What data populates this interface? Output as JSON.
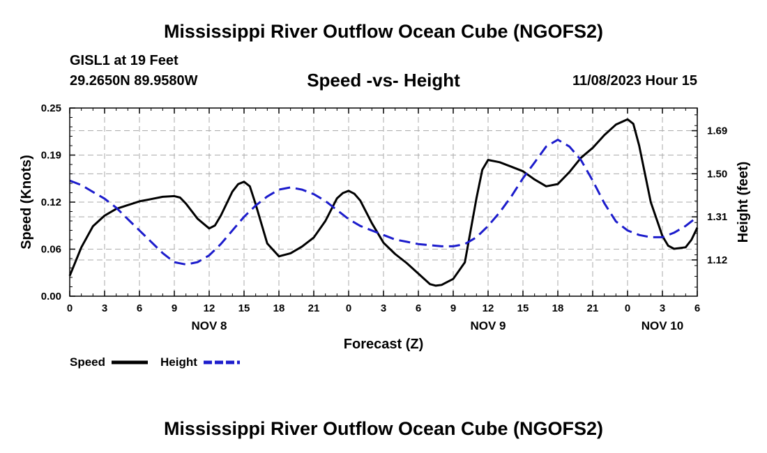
{
  "header": {
    "title": "Mississippi River Outflow Ocean Cube (NGOFS2)",
    "station": "GISL1 at 19 Feet",
    "coords": "29.2650N  89.9580W",
    "subtitle": "Speed -vs- Height",
    "datetime": "11/08/2023 Hour 15"
  },
  "footer": {
    "title": "Mississippi River Outflow Ocean Cube (NGOFS2)"
  },
  "chart_data": {
    "type": "line",
    "title": "Speed -vs- Height",
    "xlabel": "Forecast (Z)",
    "ylabel": "Speed (Knots)",
    "y2label": "Height (feet)",
    "xlim": [
      0,
      54
    ],
    "ylim": [
      0,
      0.25
    ],
    "y2lim": [
      0.96,
      1.79
    ],
    "x_ticks": [
      0,
      3,
      6,
      9,
      12,
      15,
      18,
      21,
      24,
      27,
      30,
      33,
      36,
      39,
      42,
      45,
      48,
      51,
      54
    ],
    "x_tick_labels": [
      "0",
      "3",
      "6",
      "9",
      "12",
      "15",
      "18",
      "21",
      "0",
      "3",
      "6",
      "9",
      "12",
      "15",
      "18",
      "21",
      "0",
      "3",
      "6"
    ],
    "y_ticks": [
      0,
      0.0625,
      0.125,
      0.1875,
      0.25
    ],
    "y_tick_labels": [
      "0.00",
      "0.06",
      "0.12",
      "0.19",
      "0.25"
    ],
    "y2_ticks": [
      1.12,
      1.31,
      1.5,
      1.69
    ],
    "y2_tick_labels": [
      "1.12",
      "1.31",
      "1.50",
      "1.69"
    ],
    "day_labels": [
      {
        "x": 12,
        "label": "NOV 8"
      },
      {
        "x": 36,
        "label": "NOV 9"
      },
      {
        "x": 51,
        "label": "NOV 10"
      }
    ],
    "grid": true,
    "legend_position": "bottom-left",
    "series": [
      {
        "name": "Speed",
        "axis": "left",
        "color": "#000000",
        "style": "solid",
        "x": [
          0,
          1,
          2,
          3,
          4,
          5,
          6,
          7,
          8,
          9,
          9.5,
          10,
          11,
          12,
          12.5,
          13,
          14,
          14.5,
          15,
          15.5,
          16,
          17,
          18,
          19,
          20,
          21,
          22,
          23,
          23.5,
          24,
          24.5,
          25,
          26,
          27,
          28,
          29,
          30,
          31,
          31.5,
          32,
          33,
          34,
          35,
          35.5,
          36,
          37,
          38,
          39,
          40,
          41,
          42,
          43,
          44,
          45,
          46,
          47,
          48,
          48.5,
          49,
          50,
          51,
          51.5,
          52,
          53,
          53.5,
          54
        ],
        "values": [
          0.027,
          0.065,
          0.093,
          0.107,
          0.116,
          0.121,
          0.126,
          0.129,
          0.132,
          0.133,
          0.131,
          0.123,
          0.103,
          0.09,
          0.094,
          0.107,
          0.139,
          0.149,
          0.152,
          0.146,
          0.122,
          0.07,
          0.053,
          0.057,
          0.066,
          0.078,
          0.1,
          0.13,
          0.137,
          0.14,
          0.136,
          0.127,
          0.097,
          0.071,
          0.056,
          0.044,
          0.03,
          0.016,
          0.014,
          0.015,
          0.023,
          0.045,
          0.13,
          0.168,
          0.181,
          0.178,
          0.172,
          0.166,
          0.155,
          0.146,
          0.149,
          0.165,
          0.184,
          0.197,
          0.214,
          0.228,
          0.235,
          0.229,
          0.2,
          0.125,
          0.08,
          0.067,
          0.063,
          0.065,
          0.075,
          0.091
        ]
      },
      {
        "name": "Height",
        "axis": "right",
        "color": "#1c1ccc",
        "style": "dashed",
        "x": [
          0,
          1,
          2,
          3,
          4,
          5,
          6,
          7,
          8,
          9,
          10,
          11,
          12,
          13,
          14,
          15,
          16,
          17,
          18,
          19,
          20,
          21,
          22,
          23,
          24,
          25,
          26,
          27,
          28,
          29,
          30,
          31,
          32,
          33,
          34,
          35,
          36,
          37,
          38,
          39,
          40,
          41,
          42,
          43,
          44,
          45,
          46,
          47,
          48,
          49,
          50,
          51,
          52,
          53,
          54
        ],
        "values": [
          1.47,
          1.45,
          1.42,
          1.39,
          1.35,
          1.3,
          1.25,
          1.2,
          1.15,
          1.11,
          1.1,
          1.11,
          1.14,
          1.19,
          1.25,
          1.31,
          1.36,
          1.4,
          1.43,
          1.44,
          1.43,
          1.41,
          1.38,
          1.34,
          1.3,
          1.27,
          1.25,
          1.23,
          1.21,
          1.2,
          1.19,
          1.185,
          1.18,
          1.18,
          1.19,
          1.22,
          1.27,
          1.33,
          1.4,
          1.48,
          1.55,
          1.62,
          1.65,
          1.62,
          1.56,
          1.47,
          1.37,
          1.29,
          1.25,
          1.23,
          1.22,
          1.22,
          1.24,
          1.27,
          1.31
        ]
      }
    ]
  }
}
